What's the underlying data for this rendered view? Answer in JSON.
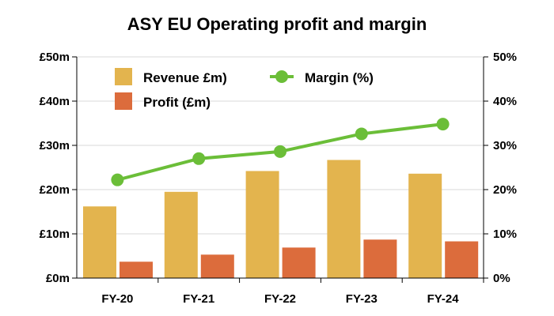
{
  "chart_data": {
    "type": "bar",
    "title": "ASY EU Operating profit and margin",
    "categories": [
      "FY-20",
      "FY-21",
      "FY-22",
      "FY-23",
      "FY-24"
    ],
    "series": [
      {
        "name": "Revenue £m)",
        "type": "bar",
        "axis": "left",
        "color": "#E3B44E",
        "values": [
          16.2,
          19.5,
          24.2,
          26.7,
          23.6
        ]
      },
      {
        "name": "Profit (£m)",
        "type": "bar",
        "axis": "left",
        "color": "#DC6C3C",
        "values": [
          3.7,
          5.3,
          6.9,
          8.7,
          8.3
        ]
      },
      {
        "name": "Margin (%)",
        "type": "line",
        "axis": "right",
        "color": "#6BBE38",
        "values": [
          22.2,
          27.0,
          28.6,
          32.6,
          34.8
        ]
      }
    ],
    "y_left": {
      "ylim": [
        0,
        50
      ],
      "ticks": [
        0,
        10,
        20,
        30,
        40,
        50
      ],
      "tick_labels": [
        "£0m",
        "£10m",
        "£20m",
        "£30m",
        "£40m",
        "£50m"
      ]
    },
    "y_right": {
      "ylim": [
        0,
        50
      ],
      "ticks": [
        0,
        10,
        20,
        30,
        40,
        50
      ],
      "tick_labels": [
        "0%",
        "10%",
        "20%",
        "30%",
        "40%",
        "50%"
      ]
    },
    "grid": true,
    "legend_position": "top-left"
  }
}
